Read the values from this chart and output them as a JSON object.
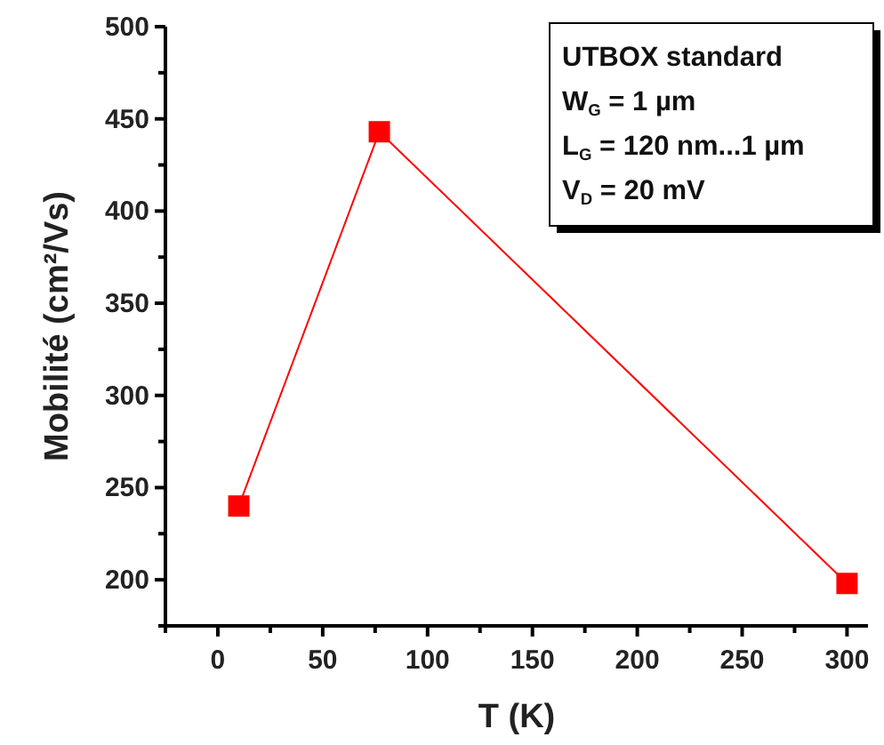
{
  "chart_data": {
    "type": "line",
    "xlabel": "T (K)",
    "ylabel": "Mobilité  (cm²/Vs)",
    "x": [
      10,
      77,
      300
    ],
    "series": [
      {
        "color": "#ff0000",
        "values": [
          240,
          443,
          198
        ]
      }
    ],
    "xlim": [
      -25,
      310
    ],
    "xticks": [
      0,
      50,
      100,
      150,
      200,
      250,
      300
    ],
    "ylim": [
      175,
      500
    ],
    "yticks": [
      200,
      250,
      300,
      350,
      400,
      450,
      500
    ],
    "marker": "square",
    "line_style": "solid",
    "grid": false,
    "annotations": [
      "UTBOX standard",
      "W$_{G}$ = 1 µm",
      "L$_{G}$ = 120 nm...1 µm",
      "V$_{D}$ = 20 mV"
    ]
  }
}
